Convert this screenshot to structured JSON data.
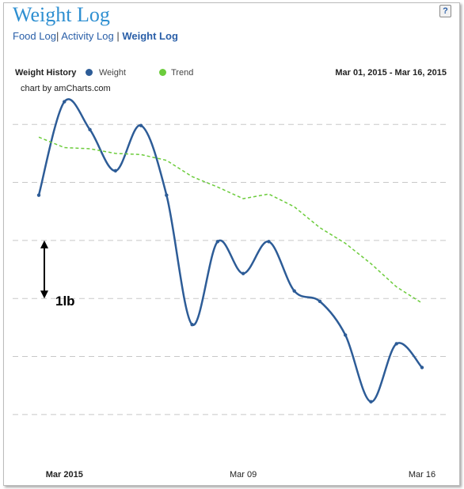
{
  "page": {
    "title": "Weight Log",
    "help_label": "?",
    "nav": [
      {
        "label": "Food Log",
        "active": false
      },
      {
        "label": "Activity Log",
        "active": false
      },
      {
        "label": "Weight Log",
        "active": true
      }
    ],
    "nav_separators": [
      "|",
      "|"
    ]
  },
  "chart_data": {
    "type": "line",
    "title": "Weight History",
    "date_range": "Mar 01, 2015 - Mar 16, 2015",
    "credit": "chart by amCharts.com",
    "x": [
      "2015-03-01",
      "2015-03-02",
      "2015-03-03",
      "2015-03-04",
      "2015-03-05",
      "2015-03-06",
      "2015-03-07",
      "2015-03-08",
      "2015-03-09",
      "2015-03-10",
      "2015-03-11",
      "2015-03-12",
      "2015-03-13",
      "2015-03-14",
      "2015-03-15",
      "2015-03-16"
    ],
    "x_tick_labels": [
      "Mar 2015",
      "Mar 09",
      "Mar 16"
    ],
    "x_tick_dates": [
      "2015-03-02",
      "2015-03-09",
      "2015-03-16"
    ],
    "ylim": [
      -0.82,
      5.78
    ],
    "y_gridlines": [
      0,
      1,
      2,
      3,
      4,
      5
    ],
    "series": [
      {
        "name": "Weight",
        "color": "#2d5c97",
        "style": "solid",
        "values": [
          3.78,
          5.39,
          4.91,
          4.2,
          4.98,
          3.78,
          1.55,
          2.98,
          2.43,
          2.98,
          2.13,
          1.95,
          1.37,
          0.22,
          1.22,
          0.81
        ]
      },
      {
        "name": "Trend",
        "color": "#6ccc3c",
        "style": "dashed",
        "values": [
          4.78,
          4.6,
          4.58,
          4.5,
          4.48,
          4.38,
          4.1,
          3.92,
          3.72,
          3.8,
          3.58,
          3.22,
          2.95,
          2.6,
          2.2,
          1.92
        ]
      }
    ],
    "annotation": {
      "label": "1lb",
      "from": 2,
      "to": 3
    }
  }
}
